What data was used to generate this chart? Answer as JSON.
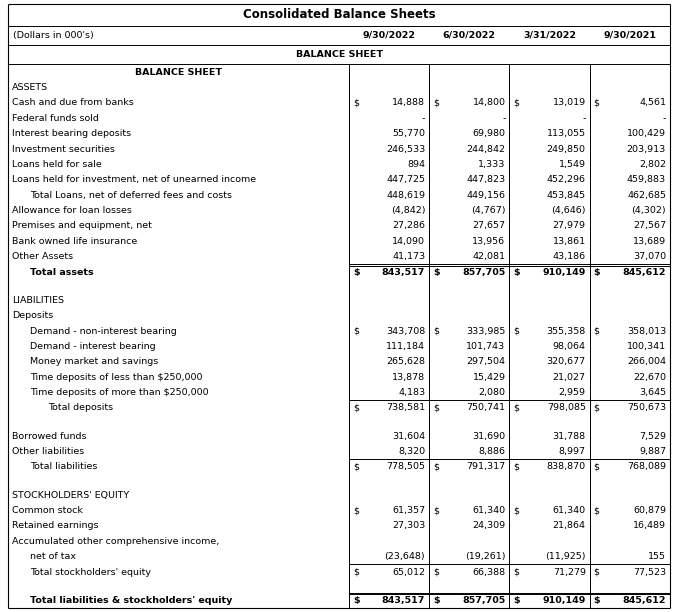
{
  "title": "Consolidated Balance Sheets",
  "col_headers": [
    "(Dollars in 000's)",
    "9/30/2022",
    "6/30/2022",
    "3/31/2022",
    "9/30/2021"
  ],
  "rows": [
    {
      "label": "BALANCE SHEET",
      "indent": 0,
      "bold": true,
      "center": true,
      "values": [
        "",
        "",
        "",
        ""
      ],
      "ds": [
        false,
        false,
        false,
        false
      ],
      "top_border": false,
      "double_border": false,
      "blank": false
    },
    {
      "label": "ASSETS",
      "indent": 0,
      "bold": false,
      "center": false,
      "values": [
        "",
        "",
        "",
        ""
      ],
      "ds": [
        false,
        false,
        false,
        false
      ],
      "top_border": false,
      "double_border": false,
      "blank": false
    },
    {
      "label": "Cash and due from banks",
      "indent": 0,
      "bold": false,
      "center": false,
      "values": [
        "14,888",
        "14,800",
        "13,019",
        "4,561"
      ],
      "ds": [
        true,
        true,
        true,
        true
      ],
      "top_border": false,
      "double_border": false,
      "blank": false
    },
    {
      "label": "Federal funds sold",
      "indent": 0,
      "bold": false,
      "center": false,
      "values": [
        "-",
        "-",
        "-",
        "-"
      ],
      "ds": [
        false,
        false,
        false,
        false
      ],
      "top_border": false,
      "double_border": false,
      "blank": false
    },
    {
      "label": "Interest bearing deposits",
      "indent": 0,
      "bold": false,
      "center": false,
      "values": [
        "55,770",
        "69,980",
        "113,055",
        "100,429"
      ],
      "ds": [
        false,
        false,
        false,
        false
      ],
      "top_border": false,
      "double_border": false,
      "blank": false
    },
    {
      "label": "Investment securities",
      "indent": 0,
      "bold": false,
      "center": false,
      "values": [
        "246,533",
        "244,842",
        "249,850",
        "203,913"
      ],
      "ds": [
        false,
        false,
        false,
        false
      ],
      "top_border": false,
      "double_border": false,
      "blank": false
    },
    {
      "label": "Loans held for sale",
      "indent": 0,
      "bold": false,
      "center": false,
      "values": [
        "894",
        "1,333",
        "1,549",
        "2,802"
      ],
      "ds": [
        false,
        false,
        false,
        false
      ],
      "top_border": false,
      "double_border": false,
      "blank": false
    },
    {
      "label": "Loans held for investment, net of unearned income",
      "indent": 0,
      "bold": false,
      "center": false,
      "values": [
        "447,725",
        "447,823",
        "452,296",
        "459,883"
      ],
      "ds": [
        false,
        false,
        false,
        false
      ],
      "top_border": false,
      "double_border": false,
      "blank": false
    },
    {
      "label": "Total Loans, net of deferred fees and costs",
      "indent": 1,
      "bold": false,
      "center": false,
      "values": [
        "448,619",
        "449,156",
        "453,845",
        "462,685"
      ],
      "ds": [
        false,
        false,
        false,
        false
      ],
      "top_border": false,
      "double_border": false,
      "blank": false
    },
    {
      "label": "Allowance for loan losses",
      "indent": 0,
      "bold": false,
      "center": false,
      "values": [
        "(4,842)",
        "(4,767)",
        "(4,646)",
        "(4,302)"
      ],
      "ds": [
        false,
        false,
        false,
        false
      ],
      "top_border": false,
      "double_border": false,
      "blank": false
    },
    {
      "label": "Premises and equipment, net",
      "indent": 0,
      "bold": false,
      "center": false,
      "values": [
        "27,286",
        "27,657",
        "27,979",
        "27,567"
      ],
      "ds": [
        false,
        false,
        false,
        false
      ],
      "top_border": false,
      "double_border": false,
      "blank": false
    },
    {
      "label": "Bank owned life insurance",
      "indent": 0,
      "bold": false,
      "center": false,
      "values": [
        "14,090",
        "13,956",
        "13,861",
        "13,689"
      ],
      "ds": [
        false,
        false,
        false,
        false
      ],
      "top_border": false,
      "double_border": false,
      "blank": false
    },
    {
      "label": "Other Assets",
      "indent": 0,
      "bold": false,
      "center": false,
      "values": [
        "41,173",
        "42,081",
        "43,186",
        "37,070"
      ],
      "ds": [
        false,
        false,
        false,
        false
      ],
      "top_border": false,
      "double_border": false,
      "blank": false
    },
    {
      "label": "Total assets",
      "indent": 1,
      "bold": true,
      "center": false,
      "values": [
        "843,517",
        "857,705",
        "910,149",
        "845,612"
      ],
      "ds": [
        true,
        true,
        true,
        true
      ],
      "top_border": true,
      "double_border": true,
      "blank": false
    },
    {
      "label": "",
      "indent": 0,
      "bold": false,
      "center": false,
      "values": [
        "",
        "",
        "",
        ""
      ],
      "ds": [
        false,
        false,
        false,
        false
      ],
      "top_border": false,
      "double_border": false,
      "blank": true
    },
    {
      "label": "LIABILITIES",
      "indent": 0,
      "bold": false,
      "center": false,
      "values": [
        "",
        "",
        "",
        ""
      ],
      "ds": [
        false,
        false,
        false,
        false
      ],
      "top_border": false,
      "double_border": false,
      "blank": false
    },
    {
      "label": "Deposits",
      "indent": 0,
      "bold": false,
      "center": false,
      "values": [
        "",
        "",
        "",
        ""
      ],
      "ds": [
        false,
        false,
        false,
        false
      ],
      "top_border": false,
      "double_border": false,
      "blank": false
    },
    {
      "label": "Demand - non-interest bearing",
      "indent": 1,
      "bold": false,
      "center": false,
      "values": [
        "343,708",
        "333,985",
        "355,358",
        "358,013"
      ],
      "ds": [
        true,
        true,
        true,
        true
      ],
      "top_border": false,
      "double_border": false,
      "blank": false
    },
    {
      "label": "Demand - interest bearing",
      "indent": 1,
      "bold": false,
      "center": false,
      "values": [
        "111,184",
        "101,743",
        "98,064",
        "100,341"
      ],
      "ds": [
        false,
        false,
        false,
        false
      ],
      "top_border": false,
      "double_border": false,
      "blank": false
    },
    {
      "label": "Money market and savings",
      "indent": 1,
      "bold": false,
      "center": false,
      "values": [
        "265,628",
        "297,504",
        "320,677",
        "266,004"
      ],
      "ds": [
        false,
        false,
        false,
        false
      ],
      "top_border": false,
      "double_border": false,
      "blank": false
    },
    {
      "label": "Time deposits of less than $250,000",
      "indent": 1,
      "bold": false,
      "center": false,
      "values": [
        "13,878",
        "15,429",
        "21,027",
        "22,670"
      ],
      "ds": [
        false,
        false,
        false,
        false
      ],
      "top_border": false,
      "double_border": false,
      "blank": false
    },
    {
      "label": "Time deposits of more than $250,000",
      "indent": 1,
      "bold": false,
      "center": false,
      "values": [
        "4,183",
        "2,080",
        "2,959",
        "3,645"
      ],
      "ds": [
        false,
        false,
        false,
        false
      ],
      "top_border": false,
      "double_border": false,
      "blank": false
    },
    {
      "label": "Total deposits",
      "indent": 2,
      "bold": false,
      "center": false,
      "values": [
        "738,581",
        "750,741",
        "798,085",
        "750,673"
      ],
      "ds": [
        true,
        true,
        true,
        true
      ],
      "top_border": true,
      "double_border": false,
      "blank": false
    },
    {
      "label": "",
      "indent": 0,
      "bold": false,
      "center": false,
      "values": [
        "",
        "",
        "",
        ""
      ],
      "ds": [
        false,
        false,
        false,
        false
      ],
      "top_border": false,
      "double_border": false,
      "blank": true
    },
    {
      "label": "Borrowed funds",
      "indent": 0,
      "bold": false,
      "center": false,
      "values": [
        "31,604",
        "31,690",
        "31,788",
        "7,529"
      ],
      "ds": [
        false,
        false,
        false,
        false
      ],
      "top_border": false,
      "double_border": false,
      "blank": false
    },
    {
      "label": "Other liabilities",
      "indent": 0,
      "bold": false,
      "center": false,
      "values": [
        "8,320",
        "8,886",
        "8,997",
        "9,887"
      ],
      "ds": [
        false,
        false,
        false,
        false
      ],
      "top_border": false,
      "double_border": false,
      "blank": false
    },
    {
      "label": "Total liabilities",
      "indent": 1,
      "bold": false,
      "center": false,
      "values": [
        "778,505",
        "791,317",
        "838,870",
        "768,089"
      ],
      "ds": [
        true,
        true,
        true,
        true
      ],
      "top_border": true,
      "double_border": false,
      "blank": false
    },
    {
      "label": "",
      "indent": 0,
      "bold": false,
      "center": false,
      "values": [
        "",
        "",
        "",
        ""
      ],
      "ds": [
        false,
        false,
        false,
        false
      ],
      "top_border": false,
      "double_border": false,
      "blank": true
    },
    {
      "label": "STOCKHOLDERS' EQUITY",
      "indent": 0,
      "bold": false,
      "center": false,
      "values": [
        "",
        "",
        "",
        ""
      ],
      "ds": [
        false,
        false,
        false,
        false
      ],
      "top_border": false,
      "double_border": false,
      "blank": false
    },
    {
      "label": "Common stock",
      "indent": 0,
      "bold": false,
      "center": false,
      "values": [
        "61,357",
        "61,340",
        "61,340",
        "60,879"
      ],
      "ds": [
        true,
        true,
        true,
        true
      ],
      "top_border": false,
      "double_border": false,
      "blank": false
    },
    {
      "label": "Retained earnings",
      "indent": 0,
      "bold": false,
      "center": false,
      "values": [
        "27,303",
        "24,309",
        "21,864",
        "16,489"
      ],
      "ds": [
        false,
        false,
        false,
        false
      ],
      "top_border": false,
      "double_border": false,
      "blank": false
    },
    {
      "label": "Accumulated other comprehensive income,",
      "indent": 0,
      "bold": false,
      "center": false,
      "values": [
        "",
        "",
        "",
        ""
      ],
      "ds": [
        false,
        false,
        false,
        false
      ],
      "top_border": false,
      "double_border": false,
      "blank": false
    },
    {
      "label": "net of tax",
      "indent": 1,
      "bold": false,
      "center": false,
      "values": [
        "(23,648)",
        "(19,261)",
        "(11,925)",
        "155"
      ],
      "ds": [
        false,
        false,
        false,
        false
      ],
      "top_border": false,
      "double_border": false,
      "blank": false
    },
    {
      "label": "Total stockholders' equity",
      "indent": 1,
      "bold": false,
      "center": false,
      "values": [
        "65,012",
        "66,388",
        "71,279",
        "77,523"
      ],
      "ds": [
        true,
        true,
        true,
        true
      ],
      "top_border": true,
      "double_border": false,
      "blank": false
    },
    {
      "label": "",
      "indent": 0,
      "bold": false,
      "center": false,
      "values": [
        "",
        "",
        "",
        ""
      ],
      "ds": [
        false,
        false,
        false,
        false
      ],
      "top_border": false,
      "double_border": false,
      "blank": true
    },
    {
      "label": "Total liabilities & stockholders' equity",
      "indent": 1,
      "bold": true,
      "center": false,
      "values": [
        "843,517",
        "857,705",
        "910,149",
        "845,612"
      ],
      "ds": [
        true,
        true,
        true,
        true
      ],
      "top_border": true,
      "double_border": true,
      "blank": false
    }
  ],
  "fs": 6.8,
  "title_fs": 8.5,
  "bg": "#ffffff"
}
